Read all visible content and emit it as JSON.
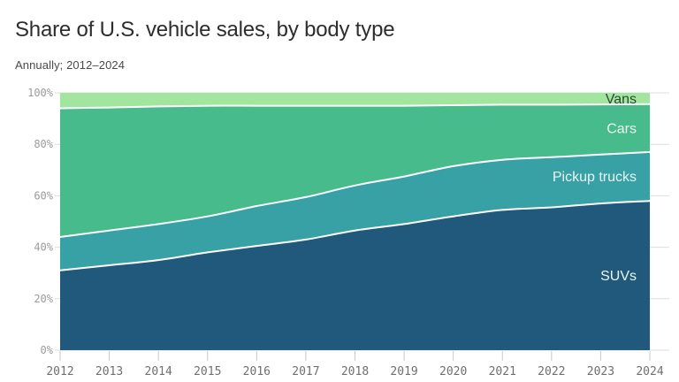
{
  "header": {
    "title": "Share of U.S. vehicle sales, by body type",
    "subtitle": "Annually; 2012–2024"
  },
  "chart_data": {
    "type": "area",
    "stacked": true,
    "unit": "%",
    "title": "Share of U.S. vehicle sales, by body type",
    "subtitle": "Annually; 2012–2024",
    "x": [
      2012,
      2013,
      2014,
      2015,
      2016,
      2017,
      2018,
      2019,
      2020,
      2021,
      2022,
      2023,
      2024
    ],
    "series": [
      {
        "name": "SUVs",
        "color": "#20597c",
        "label_color": "#eaf6f1",
        "values": [
          31,
          33,
          35,
          38,
          40.5,
          43,
          46.5,
          49,
          52,
          54.5,
          55.5,
          57,
          58
        ]
      },
      {
        "name": "Pickup trucks",
        "color": "#37a1a6",
        "label_color": "#eaf6f1",
        "values": [
          13,
          13.5,
          14,
          14,
          15.5,
          16.5,
          17.5,
          18.5,
          19.5,
          19.5,
          19.5,
          19,
          19
        ]
      },
      {
        "name": "Cars",
        "color": "#47bb8c",
        "label_color": "#eaf6f1",
        "values": [
          50,
          47.8,
          45.7,
          43,
          39,
          35.5,
          31,
          27.5,
          23.7,
          21.4,
          20.4,
          19.5,
          18.6
        ]
      },
      {
        "name": "Vans",
        "color": "#a2e59e",
        "label_color": "#2c4a31",
        "values": [
          6,
          5.7,
          5.3,
          5,
          5,
          5,
          5,
          5,
          4.8,
          4.6,
          4.6,
          4.5,
          4.4
        ]
      }
    ],
    "y_ticks": [
      0,
      20,
      40,
      60,
      80,
      100
    ],
    "y_tick_suffix": "%",
    "ylim": [
      0,
      100
    ],
    "grid": "horizontal",
    "legend_position": "inline-right",
    "style": {
      "grid_color": "#dedede",
      "tick_color": "#c9c9c9",
      "boundary_stroke": "#ffffff"
    }
  }
}
